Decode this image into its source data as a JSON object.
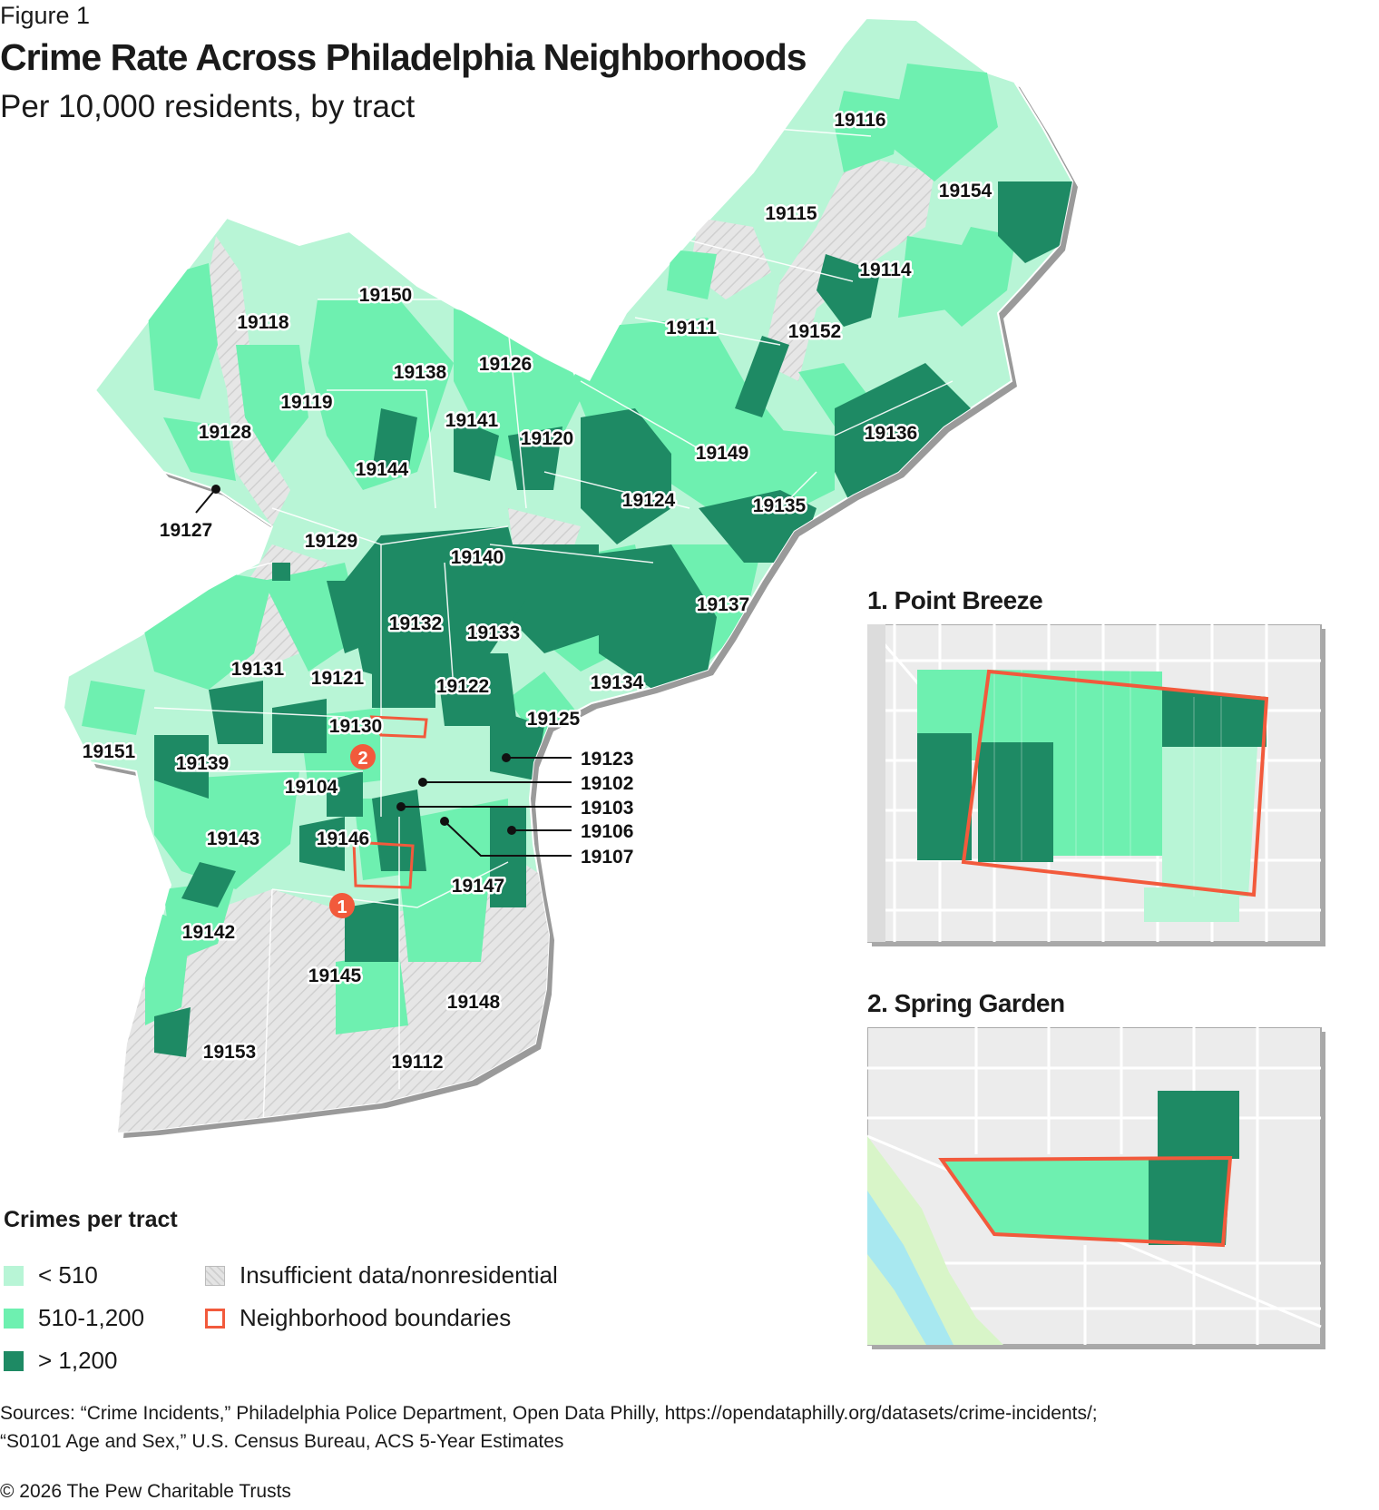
{
  "figure_label": "Figure 1",
  "title": "Crime Rate Across Philadelphia Neighborhoods",
  "subtitle": "Per 10,000 residents, by tract",
  "colors": {
    "low": "#b8f5d6",
    "mid": "#6ef0b0",
    "high": "#1e8a64",
    "nodata": "#e4e4e4",
    "boundary": "#f25a3c"
  },
  "zip_labels": [
    "19116",
    "19154",
    "19115",
    "19114",
    "19150",
    "19118",
    "19111",
    "19152",
    "19126",
    "19138",
    "19119",
    "19141",
    "19120",
    "19128",
    "19136",
    "19149",
    "19144",
    "19124",
    "19135",
    "19127",
    "19129",
    "19140",
    "19137",
    "19132",
    "19133",
    "19131",
    "19121",
    "19122",
    "19134",
    "19130",
    "19125",
    "19151",
    "19139",
    "19104",
    "19143",
    "19146",
    "19147",
    "19142",
    "19145",
    "19148",
    "19153",
    "19112"
  ],
  "callouts": [
    {
      "label": "19123"
    },
    {
      "label": "19102"
    },
    {
      "label": "19103"
    },
    {
      "label": "19106"
    },
    {
      "label": "19107"
    }
  ],
  "markers": [
    "1",
    "2"
  ],
  "insets": [
    {
      "title": "1. Point Breeze"
    },
    {
      "title": "2. Spring Garden"
    }
  ],
  "legend": {
    "title": "Crimes per tract",
    "items": [
      {
        "label": "< 510"
      },
      {
        "label": "510-1,200"
      },
      {
        "label": "> 1,200"
      },
      {
        "label": "Insufficient data/nonresidential"
      },
      {
        "label": "Neighborhood boundaries"
      }
    ]
  },
  "sources": [
    "Sources: “Crime Incidents,” Philadelphia Police Department, Open Data Philly, https://opendataphilly.org/datasets/crime-incidents/;",
    "“S0101 Age and Sex,” U.S. Census Bureau, ACS 5-Year Estimates"
  ],
  "copyright": "© 2026 The Pew Charitable Trusts"
}
